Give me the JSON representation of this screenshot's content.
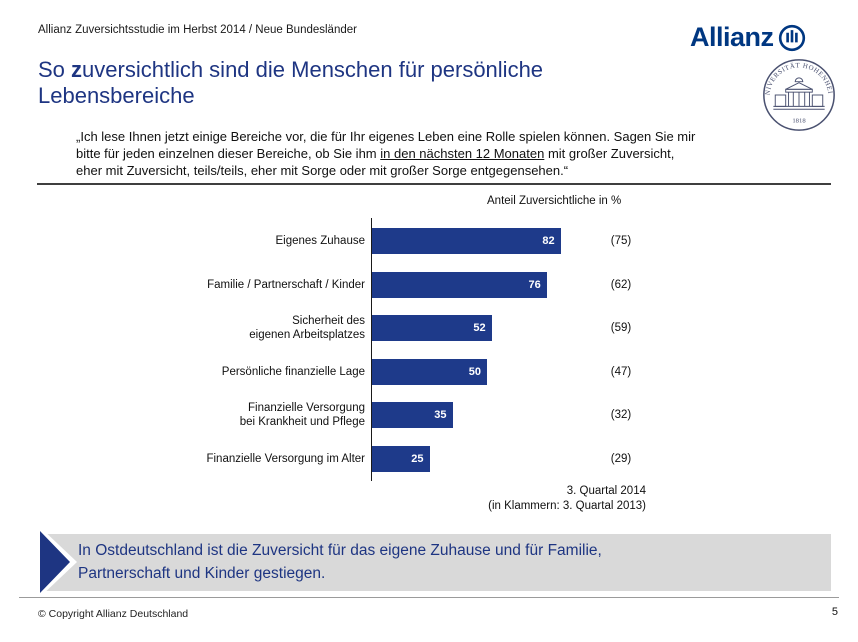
{
  "header": {
    "study_label": "Allianz Zuversichtsstudie im Herbst 2014 / Neue Bundesländer",
    "logo_wordmark": "Allianz",
    "seal_text": "UNIVERSITÄT HOHENHEIM",
    "seal_year": "1818"
  },
  "title": {
    "pre": "So ",
    "bold_char": "z",
    "line1_rest": "uversichtlich sind die Menschen für persönliche",
    "line2": "Lebensbereiche"
  },
  "quote": {
    "line1": "„Ich lese Ihnen jetzt einige Bereiche vor, die für Ihr eigenes Leben eine Rolle spielen können. Sagen Sie mir",
    "line2_pre": "bitte für jeden einzelnen dieser Bereiche, ob Sie ihm ",
    "line2_underlined": "in den nächsten 12 Monaten",
    "line2_post": " mit großer Zuversicht,",
    "line3": "eher mit Zuversicht, teils/teils, eher mit Sorge oder mit großer Sorge entgegensehen.“"
  },
  "chart_data": {
    "type": "bar",
    "orientation": "horizontal",
    "title": "Anteil Zuversichtliche in %",
    "categories": [
      "Eigenes Zuhause",
      "Familie / Partnerschaft / Kinder",
      "Sicherheit des eigenen Arbeitsplatzes",
      "Persönliche finanzielle Lage",
      "Finanzielle Versorgung bei Krankheit und Pflege",
      "Finanzielle Versorgung im Alter"
    ],
    "values": [
      82,
      76,
      52,
      50,
      35,
      25
    ],
    "values_previous": [
      75,
      62,
      59,
      47,
      32,
      29
    ],
    "xlim": [
      0,
      100
    ],
    "bar_color": "#1e3a8a",
    "value_label_color": "#ffffff",
    "note_line1": "3. Quartal 2014",
    "note_line2": "(in Klammern: 3. Quartal 2013)",
    "rows": [
      {
        "label": "Eigenes Zuhause",
        "value": "82",
        "prev": "(75)"
      },
      {
        "label": "Familie / Partnerschaft / Kinder",
        "value": "76",
        "prev": "(62)"
      },
      {
        "label": "Sicherheit des\neigenen Arbeitsplatzes",
        "value": "52",
        "prev": "(59)"
      },
      {
        "label": "Persönliche finanzielle Lage",
        "value": "50",
        "prev": "(47)"
      },
      {
        "label": "Finanzielle Versorgung\nbei Krankheit und Pflege",
        "value": "35",
        "prev": "(32)"
      },
      {
        "label": "Finanzielle Versorgung im Alter",
        "value": "25",
        "prev": "(29)"
      }
    ]
  },
  "callout": {
    "line1": "In Ostdeutschland ist die Zuversicht für das eigene Zuhause und für Familie,",
    "line2": "Partnerschaft und Kinder gestiegen.",
    "text_color": "#1e3582",
    "background": "#d9d9d9"
  },
  "footer": {
    "copyright": "© Copyright Allianz Deutschland",
    "page_number": "5"
  },
  "colors": {
    "brand_blue": "#003781",
    "accent_blue": "#1e3582",
    "bar_blue": "#1e3a8a"
  }
}
